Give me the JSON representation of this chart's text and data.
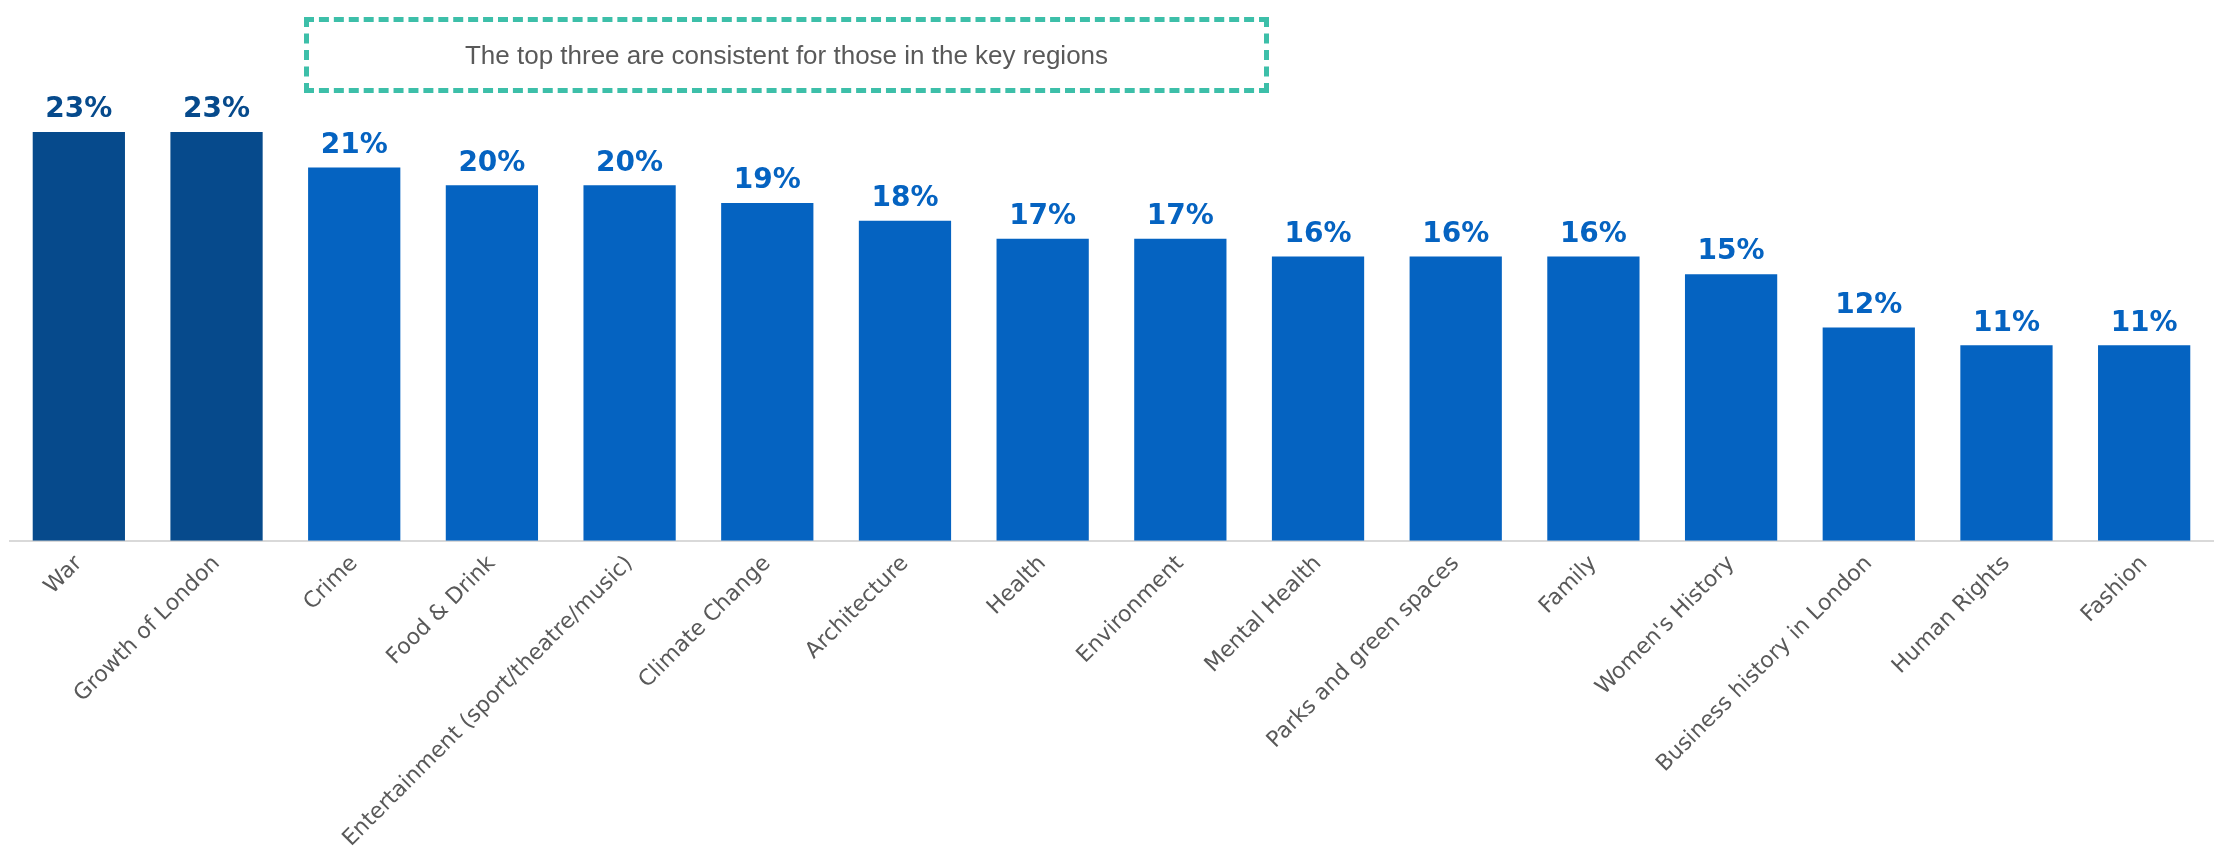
{
  "chart_data": {
    "type": "bar",
    "categories": [
      "War",
      "Growth of London",
      "Crime",
      "Food & Drink",
      "Entertainment (sport/theatre/music)",
      "Climate Change",
      "Architecture",
      "Health",
      "Environment",
      "Mental Health",
      "Parks and green spaces",
      "Family",
      "Women's History",
      "Business history in London",
      "Human Rights",
      "Fashion"
    ],
    "values": [
      23,
      23,
      21,
      20,
      20,
      19,
      18,
      17,
      17,
      16,
      16,
      16,
      15,
      12,
      11,
      11
    ],
    "colors": [
      "#064a8c",
      "#064a8c",
      "#0563c1",
      "#0563c1",
      "#0563c1",
      "#0563c1",
      "#0563c1",
      "#0563c1",
      "#0563c1",
      "#0563c1",
      "#0563c1",
      "#0563c1",
      "#0563c1",
      "#0563c1",
      "#0563c1",
      "#0563c1"
    ],
    "value_labels": [
      "23%",
      "23%",
      "21%",
      "20%",
      "20%",
      "19%",
      "18%",
      "17%",
      "17%",
      "16%",
      "16%",
      "16%",
      "15%",
      "12%",
      "11%",
      "11%"
    ],
    "annotations": [
      "The top three are consistent for those in the key regions"
    ],
    "grid": false,
    "legend": false
  }
}
